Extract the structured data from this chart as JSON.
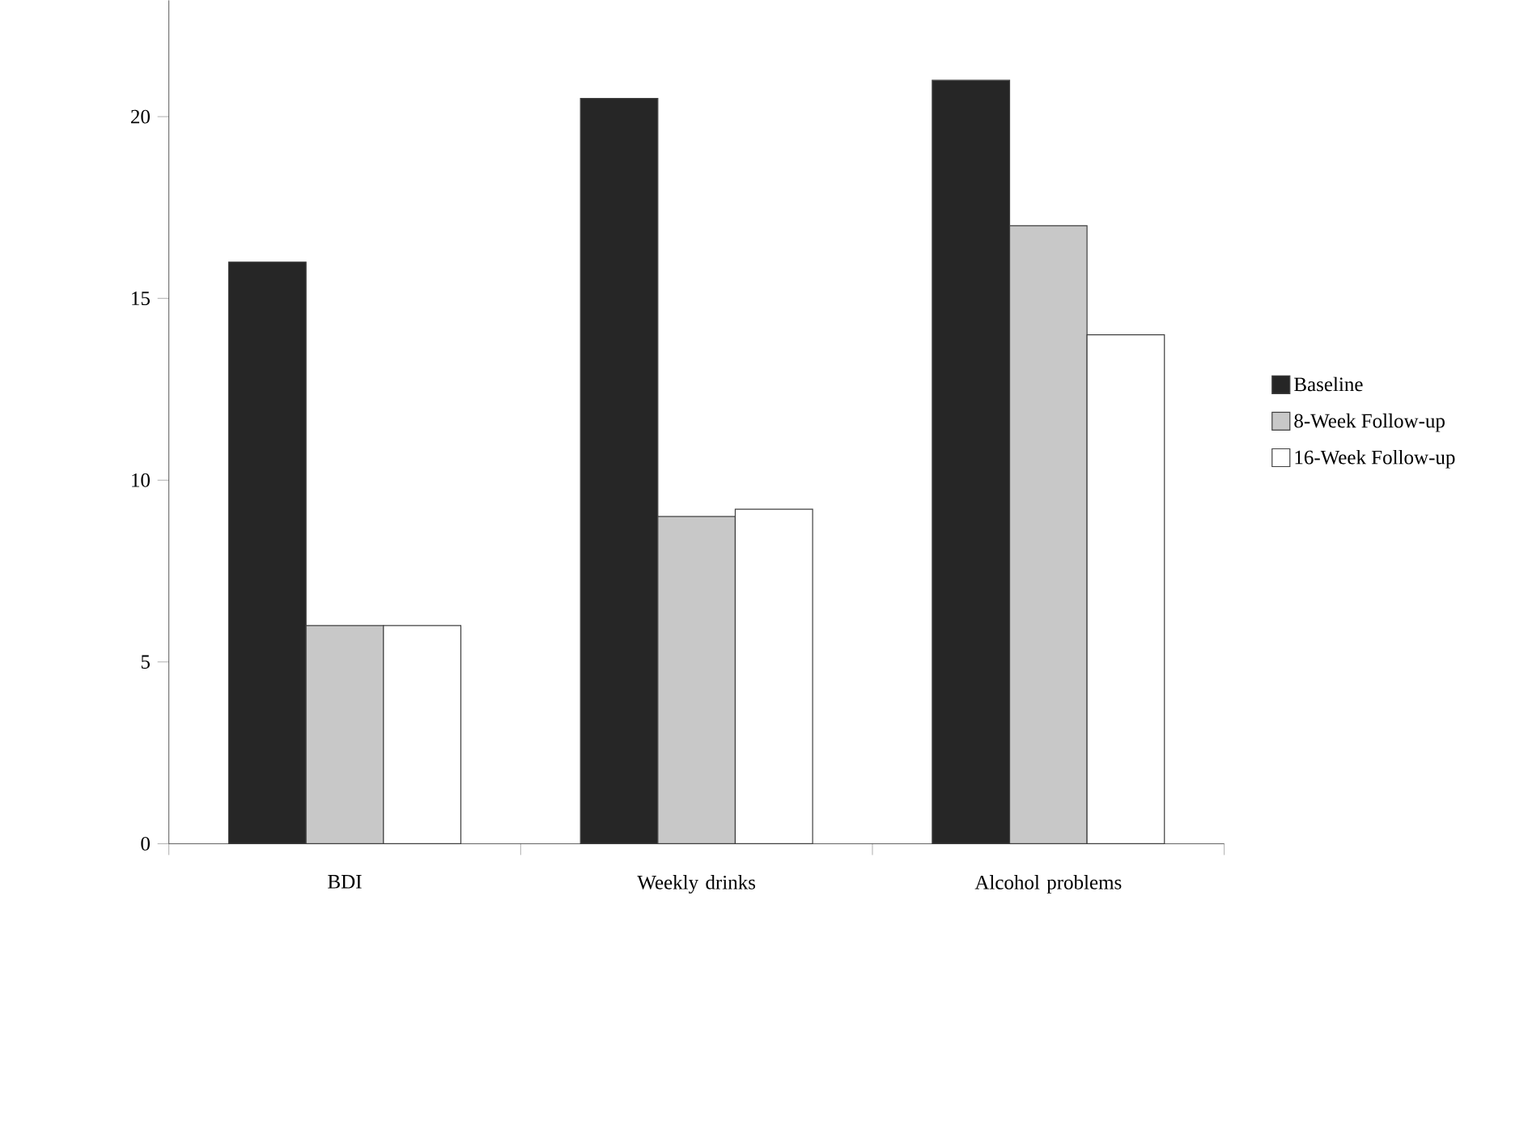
{
  "chart_data": {
    "type": "bar",
    "categories": [
      "BDI",
      "Weekly drinks",
      "Alcohol problems"
    ],
    "series": [
      {
        "name": "Baseline",
        "color": "#262626",
        "values": [
          16,
          20.5,
          21
        ]
      },
      {
        "name": "8-Week Follow-up",
        "color": "#c8c8c8",
        "values": [
          6,
          9,
          17
        ]
      },
      {
        "name": "16-Week Follow-up",
        "color": "#ffffff",
        "values": [
          6,
          9.2,
          14
        ]
      }
    ],
    "ylim": [
      0,
      23.2
    ],
    "yticks": [
      0,
      5,
      10,
      15,
      20
    ],
    "legend": "right"
  }
}
